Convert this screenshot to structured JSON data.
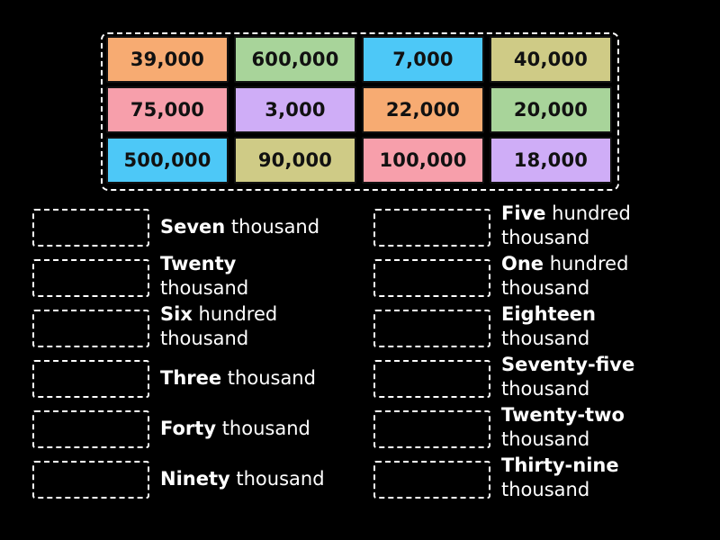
{
  "tiles": [
    {
      "text": "39,000",
      "color": "#f7ab72"
    },
    {
      "text": "600,000",
      "color": "#a8d49a"
    },
    {
      "text": "7,000",
      "color": "#4dc8f7"
    },
    {
      "text": "40,000",
      "color": "#cfcb86"
    },
    {
      "text": "75,000",
      "color": "#f79fab"
    },
    {
      "text": "3,000",
      "color": "#cfadf7"
    },
    {
      "text": "22,000",
      "color": "#f7ab72"
    },
    {
      "text": "20,000",
      "color": "#a8d49a"
    },
    {
      "text": "500,000",
      "color": "#4dc8f7"
    },
    {
      "text": "90,000",
      "color": "#cfcb86"
    },
    {
      "text": "100,000",
      "color": "#f79fab"
    },
    {
      "text": "18,000",
      "color": "#cfadf7"
    }
  ],
  "labels": {
    "left": [
      {
        "bold": "Seven",
        "rest": " thousand"
      },
      {
        "bold": "Twenty",
        "rest": " thousand"
      },
      {
        "bold": "Six",
        "rest": " hundred thousand"
      },
      {
        "bold": "Three",
        "rest": " thousand"
      },
      {
        "bold": "Forty",
        "rest": " thousand"
      },
      {
        "bold": "Ninety",
        "rest": " thousand"
      }
    ],
    "right": [
      {
        "bold": "Five",
        "rest": " hundred thousand"
      },
      {
        "bold": "One",
        "rest": " hundred thousand"
      },
      {
        "bold": "Eighteen",
        "rest": " thousand"
      },
      {
        "bold": "Seventy-five",
        "rest": " thousand"
      },
      {
        "bold": "Twenty-two",
        "rest": " thousand"
      },
      {
        "bold": "Thirty-nine",
        "rest": " thousand"
      }
    ]
  }
}
